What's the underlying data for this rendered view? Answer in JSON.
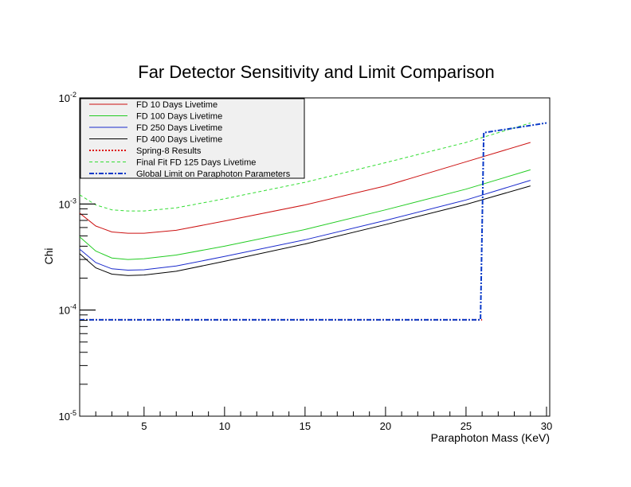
{
  "chart_data": {
    "type": "line",
    "title": "Far Detector Sensitivity and Limit Comparison",
    "xlabel": "Paraphoton Mass (KeV)",
    "ylabel": "Chi",
    "xlim": [
      1,
      30.2
    ],
    "ylim": [
      1e-05,
      0.01
    ],
    "yscale": "log",
    "x_ticks": [
      5,
      10,
      15,
      20,
      25,
      30
    ],
    "x_tick_labels": [
      "5",
      "10",
      "15",
      "20",
      "25",
      "30"
    ],
    "y_ticks": [
      1e-05,
      0.0001,
      0.001,
      0.01
    ],
    "y_tick_labels": [
      {
        "base": "10",
        "exp": "-5"
      },
      {
        "base": "10",
        "exp": "-4"
      },
      {
        "base": "10",
        "exp": "-3"
      },
      {
        "base": "10",
        "exp": "-2"
      }
    ],
    "grid": false,
    "legend_position": "top-left",
    "series": [
      {
        "name": "FD 10 Days Livetime",
        "color": "#cc1111",
        "style": "solid",
        "points": [
          [
            1,
            0.00082
          ],
          [
            2,
            0.00062
          ],
          [
            3,
            0.000545
          ],
          [
            4,
            0.00053
          ],
          [
            5,
            0.00053
          ],
          [
            7,
            0.000565
          ],
          [
            10,
            0.00069
          ],
          [
            15,
            0.00098
          ],
          [
            20,
            0.00148
          ],
          [
            25,
            0.0025
          ],
          [
            29,
            0.0038
          ]
        ]
      },
      {
        "name": "FD 100 Days Livetime",
        "color": "#22cc22",
        "style": "solid",
        "points": [
          [
            1,
            0.00049
          ],
          [
            2,
            0.00036
          ],
          [
            3,
            0.00031
          ],
          [
            4,
            0.0003
          ],
          [
            5,
            0.000305
          ],
          [
            7,
            0.00033
          ],
          [
            10,
            0.0004
          ],
          [
            15,
            0.000575
          ],
          [
            20,
            0.00088
          ],
          [
            25,
            0.00138
          ],
          [
            29,
            0.0021
          ]
        ]
      },
      {
        "name": "FD 250 Days Livetime",
        "color": "#1a2acc",
        "style": "solid",
        "points": [
          [
            1,
            0.000375
          ],
          [
            2,
            0.00028
          ],
          [
            3,
            0.000245
          ],
          [
            4,
            0.000238
          ],
          [
            5,
            0.00024
          ],
          [
            7,
            0.00026
          ],
          [
            10,
            0.00032
          ],
          [
            15,
            0.00046
          ],
          [
            20,
            0.0007
          ],
          [
            25,
            0.00109
          ],
          [
            29,
            0.00167
          ]
        ]
      },
      {
        "name": "FD 400 Days Livetime",
        "color": "#000000",
        "style": "solid",
        "points": [
          [
            1,
            0.00034
          ],
          [
            2,
            0.00025
          ],
          [
            3,
            0.000218
          ],
          [
            4,
            0.000212
          ],
          [
            5,
            0.000214
          ],
          [
            7,
            0.000232
          ],
          [
            10,
            0.000288
          ],
          [
            15,
            0.00042
          ],
          [
            20,
            0.00064
          ],
          [
            25,
            0.00099
          ],
          [
            29,
            0.00148
          ]
        ]
      },
      {
        "name": "Spring-8 Results",
        "color": "#dd1111",
        "style": "dotted",
        "points": [
          [
            1,
            8.1e-05
          ],
          [
            26,
            8.1e-05
          ]
        ]
      },
      {
        "name": "Final Fit FD 125 Days Livetime",
        "color": "#33dd33",
        "style": "dashed",
        "points": [
          [
            1,
            0.00122
          ],
          [
            2,
            0.00098
          ],
          [
            3,
            0.00088
          ],
          [
            4,
            0.00086
          ],
          [
            5,
            0.00086
          ],
          [
            7,
            0.00092
          ],
          [
            10,
            0.00112
          ],
          [
            15,
            0.0016
          ],
          [
            20,
            0.00245
          ],
          [
            25,
            0.0038
          ],
          [
            29,
            0.0058
          ]
        ]
      },
      {
        "name": "Global Limit on Paraphoton Parameters",
        "color": "#0a3ac8",
        "style": "dashdot",
        "points": [
          [
            1,
            8.1e-05
          ],
          [
            25.9,
            8.1e-05
          ],
          [
            26.1,
            0.0047
          ],
          [
            28,
            0.0052
          ],
          [
            30,
            0.0058
          ]
        ]
      }
    ]
  }
}
